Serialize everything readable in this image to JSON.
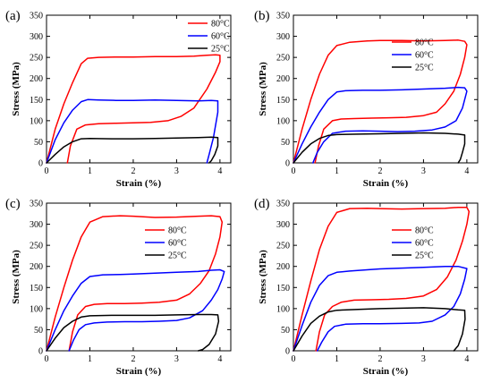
{
  "chart_data": [
    {
      "type": "line",
      "panel_label": "(a)",
      "xlabel": "Strain (%)",
      "ylabel": "Stress (MPa)",
      "xlim": [
        0,
        4.25
      ],
      "ylim": [
        0,
        350
      ],
      "xticks": [
        0,
        1,
        2,
        3,
        4
      ],
      "yticks": [
        0,
        50,
        100,
        150,
        200,
        250,
        300,
        350
      ],
      "grid": false,
      "legend_position": "top-right",
      "series": [
        {
          "name": "80°C",
          "color": "#ff0000",
          "x": [
            0,
            0.2,
            0.4,
            0.6,
            0.8,
            0.95,
            1.2,
            1.6,
            2.0,
            2.5,
            3.0,
            3.4,
            3.7,
            3.9,
            4.0,
            4.0,
            3.9,
            3.7,
            3.4,
            3.1,
            2.8,
            2.4,
            2.0,
            1.6,
            1.2,
            0.9,
            0.7,
            0.55,
            0.48
          ],
          "y": [
            0,
            80,
            140,
            190,
            235,
            248,
            250,
            251,
            251,
            252,
            252,
            253,
            255,
            256,
            255,
            240,
            215,
            175,
            130,
            110,
            100,
            96,
            95,
            94,
            93,
            90,
            80,
            40,
            0
          ]
        },
        {
          "name": "60°C",
          "color": "#0000ff",
          "x": [
            0,
            0.2,
            0.4,
            0.6,
            0.8,
            0.95,
            1.2,
            1.6,
            2.0,
            2.5,
            3.0,
            3.5,
            3.8,
            3.95,
            3.95,
            3.85,
            3.75,
            3.7
          ],
          "y": [
            0,
            55,
            95,
            125,
            145,
            150,
            149,
            148,
            148,
            149,
            148,
            147,
            148,
            147,
            120,
            60,
            20,
            0
          ]
        },
        {
          "name": "25°C",
          "color": "#000000",
          "x": [
            0,
            0.2,
            0.4,
            0.6,
            0.8,
            1.0,
            1.5,
            2.0,
            2.5,
            3.0,
            3.5,
            3.8,
            3.95,
            3.95,
            3.88,
            3.8,
            3.75
          ],
          "y": [
            0,
            20,
            38,
            50,
            57,
            58,
            57,
            57,
            58,
            59,
            60,
            61,
            60,
            40,
            20,
            5,
            0
          ]
        }
      ]
    },
    {
      "type": "line",
      "panel_label": "(b)",
      "xlabel": "Strain (%)",
      "ylabel": "Stress (MPa)",
      "xlim": [
        0,
        4.25
      ],
      "ylim": [
        0,
        350
      ],
      "xticks": [
        0,
        1,
        2,
        3,
        4
      ],
      "yticks": [
        0,
        50,
        100,
        150,
        200,
        250,
        300,
        350
      ],
      "grid": false,
      "legend_position": "top-right",
      "series": [
        {
          "name": "80°C",
          "color": "#ff0000",
          "x": [
            0,
            0.2,
            0.4,
            0.6,
            0.8,
            1.0,
            1.3,
            1.7,
            2.0,
            2.5,
            3.0,
            3.5,
            3.8,
            3.95,
            4.0,
            3.95,
            3.85,
            3.7,
            3.5,
            3.3,
            3.0,
            2.6,
            2.2,
            1.8,
            1.4,
            1.1,
            0.9,
            0.7,
            0.58,
            0.5
          ],
          "y": [
            0,
            80,
            150,
            210,
            255,
            278,
            286,
            289,
            290,
            290,
            289,
            290,
            291,
            288,
            280,
            250,
            210,
            170,
            140,
            120,
            112,
            108,
            107,
            106,
            105,
            104,
            100,
            80,
            40,
            0
          ]
        },
        {
          "name": "60°C",
          "color": "#0000ff",
          "x": [
            0,
            0.2,
            0.4,
            0.6,
            0.8,
            1.0,
            1.2,
            1.6,
            2.0,
            2.5,
            3.0,
            3.5,
            3.8,
            3.95,
            4.0,
            3.9,
            3.75,
            3.5,
            3.2,
            2.8,
            2.4,
            2.0,
            1.6,
            1.2,
            0.9,
            0.7,
            0.55,
            0.45
          ],
          "y": [
            0,
            45,
            85,
            120,
            150,
            168,
            171,
            172,
            172,
            173,
            175,
            177,
            179,
            178,
            170,
            130,
            100,
            85,
            78,
            75,
            74,
            75,
            76,
            75,
            70,
            50,
            25,
            0
          ]
        },
        {
          "name": "25°C",
          "color": "#000000",
          "x": [
            0,
            0.2,
            0.4,
            0.6,
            0.8,
            1.0,
            1.5,
            2.0,
            2.5,
            3.0,
            3.5,
            3.8,
            3.95,
            3.95,
            3.9,
            3.85,
            3.8
          ],
          "y": [
            0,
            25,
            45,
            58,
            65,
            67,
            68,
            69,
            70,
            71,
            70,
            68,
            66,
            45,
            25,
            8,
            0
          ]
        }
      ]
    },
    {
      "type": "line",
      "panel_label": "(c)",
      "xlabel": "Strain (%)",
      "ylabel": "Stress (MPa)",
      "xlim": [
        0,
        4.25
      ],
      "ylim": [
        0,
        350
      ],
      "xticks": [
        0,
        1,
        2,
        3,
        4
      ],
      "yticks": [
        0,
        50,
        100,
        150,
        200,
        250,
        300,
        350
      ],
      "grid": false,
      "legend_position": "top-right",
      "series": [
        {
          "name": "80°C",
          "color": "#ff0000",
          "x": [
            0,
            0.2,
            0.4,
            0.6,
            0.8,
            1.0,
            1.3,
            1.7,
            2.0,
            2.5,
            3.0,
            3.5,
            3.8,
            4.0,
            4.05,
            4.0,
            3.9,
            3.75,
            3.55,
            3.3,
            3.0,
            2.6,
            2.2,
            1.8,
            1.4,
            1.1,
            0.9,
            0.72,
            0.6,
            0.52
          ],
          "y": [
            0,
            80,
            150,
            215,
            270,
            305,
            318,
            320,
            319,
            316,
            317,
            319,
            320,
            318,
            305,
            270,
            230,
            190,
            160,
            135,
            120,
            115,
            113,
            112,
            112,
            110,
            105,
            85,
            45,
            0
          ]
        },
        {
          "name": "60°C",
          "color": "#0000ff",
          "x": [
            0,
            0.2,
            0.4,
            0.6,
            0.8,
            1.0,
            1.3,
            1.7,
            2.0,
            2.5,
            3.0,
            3.5,
            3.8,
            4.0,
            4.1,
            4.05,
            3.95,
            3.8,
            3.6,
            3.3,
            3.0,
            2.6,
            2.2,
            1.8,
            1.4,
            1.1,
            0.9,
            0.75,
            0.62,
            0.52
          ],
          "y": [
            0,
            50,
            95,
            130,
            160,
            176,
            180,
            181,
            182,
            184,
            186,
            188,
            191,
            192,
            188,
            170,
            145,
            120,
            95,
            78,
            72,
            70,
            69,
            69,
            68,
            66,
            62,
            50,
            25,
            0
          ]
        },
        {
          "name": "25°C",
          "color": "#000000",
          "x": [
            0,
            0.2,
            0.4,
            0.6,
            0.8,
            1.0,
            1.5,
            2.0,
            2.5,
            3.0,
            3.5,
            3.8,
            3.95,
            3.97,
            3.9,
            3.75,
            3.6,
            3.5
          ],
          "y": [
            0,
            30,
            55,
            70,
            80,
            83,
            84,
            84,
            84,
            85,
            86,
            86,
            85,
            70,
            40,
            15,
            3,
            0
          ]
        }
      ]
    },
    {
      "type": "line",
      "panel_label": "(d)",
      "xlabel": "Strain (%)",
      "ylabel": "Stress (MPa)",
      "xlim": [
        0,
        4.25
      ],
      "ylim": [
        0,
        350
      ],
      "xticks": [
        0,
        1,
        2,
        3,
        4
      ],
      "yticks": [
        0,
        50,
        100,
        150,
        200,
        250,
        300,
        350
      ],
      "grid": false,
      "legend_position": "top-right",
      "series": [
        {
          "name": "80°C",
          "color": "#ff0000",
          "x": [
            0,
            0.2,
            0.4,
            0.6,
            0.8,
            1.0,
            1.3,
            1.7,
            2.0,
            2.5,
            3.0,
            3.5,
            3.8,
            4.0,
            4.05,
            4.0,
            3.9,
            3.75,
            3.55,
            3.3,
            3.0,
            2.6,
            2.2,
            1.8,
            1.4,
            1.1,
            0.9,
            0.72,
            0.6,
            0.52
          ],
          "y": [
            0,
            85,
            165,
            240,
            295,
            328,
            337,
            338,
            337,
            336,
            337,
            338,
            340,
            340,
            330,
            300,
            260,
            215,
            175,
            145,
            130,
            124,
            122,
            121,
            120,
            115,
            105,
            85,
            45,
            0
          ]
        },
        {
          "name": "60°C",
          "color": "#0000ff",
          "x": [
            0,
            0.2,
            0.4,
            0.6,
            0.8,
            1.0,
            1.3,
            1.7,
            2.0,
            2.5,
            3.0,
            3.5,
            3.8,
            4.0,
            3.95,
            3.85,
            3.7,
            3.5,
            3.2,
            2.9,
            2.5,
            2.0,
            1.6,
            1.2,
            0.95,
            0.8,
            0.65,
            0.55
          ],
          "y": [
            0,
            60,
            115,
            155,
            178,
            186,
            189,
            192,
            194,
            196,
            198,
            200,
            200,
            195,
            170,
            135,
            105,
            85,
            70,
            66,
            65,
            64,
            64,
            63,
            58,
            45,
            20,
            0
          ]
        },
        {
          "name": "25°C",
          "color": "#000000",
          "x": [
            0,
            0.2,
            0.4,
            0.6,
            0.8,
            1.0,
            1.5,
            2.0,
            2.5,
            3.0,
            3.5,
            3.8,
            3.95,
            3.96,
            3.9,
            3.8,
            3.7
          ],
          "y": [
            0,
            35,
            65,
            82,
            92,
            96,
            98,
            100,
            101,
            102,
            100,
            97,
            96,
            75,
            40,
            12,
            0
          ]
        }
      ]
    }
  ]
}
